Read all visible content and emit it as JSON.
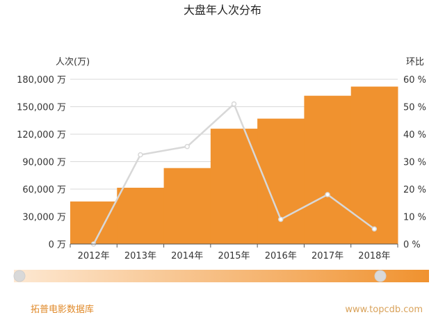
{
  "colors": {
    "bar": "#f0922f",
    "line": "#d8d8d8",
    "grid": "#d9d9d9",
    "axis_text": "#333333",
    "slider_start": "#fde8d2",
    "slider_end": "#f0922f",
    "handle": "#d9d9d9",
    "footer_left": "#e08a2a",
    "footer_right": "#d9a25a"
  },
  "chart_data": {
    "type": "bar",
    "title": "大盘年人次分布",
    "categories": [
      "2012年",
      "2013年",
      "2014年",
      "2015年",
      "2016年",
      "2017年",
      "2018年"
    ],
    "series": [
      {
        "type": "area-step",
        "axis": "left",
        "values": [
          46500,
          61500,
          83000,
          126000,
          137000,
          162000,
          172000
        ]
      },
      {
        "type": "line",
        "axis": "right",
        "values": [
          0,
          32.5,
          35.5,
          51,
          9,
          18,
          5.5
        ]
      }
    ],
    "y_left": {
      "label": "人次(万)",
      "ylim": [
        0,
        180000
      ],
      "ticks": [
        "0 万",
        "30,000 万",
        "60,000 万",
        "90,000 万",
        "120,000 万",
        "150,000 万",
        "180,000 万"
      ]
    },
    "y_right": {
      "label": "环比",
      "ylim": [
        0,
        60
      ],
      "ticks": [
        "0 %",
        "10 %",
        "20 %",
        "30 %",
        "40 %",
        "50 %",
        "60 %"
      ]
    },
    "grid": true
  },
  "slider": {
    "start": 0,
    "end": 1
  },
  "footer": {
    "source": "拓普电影数据库",
    "website": "www.topcdb.com"
  }
}
